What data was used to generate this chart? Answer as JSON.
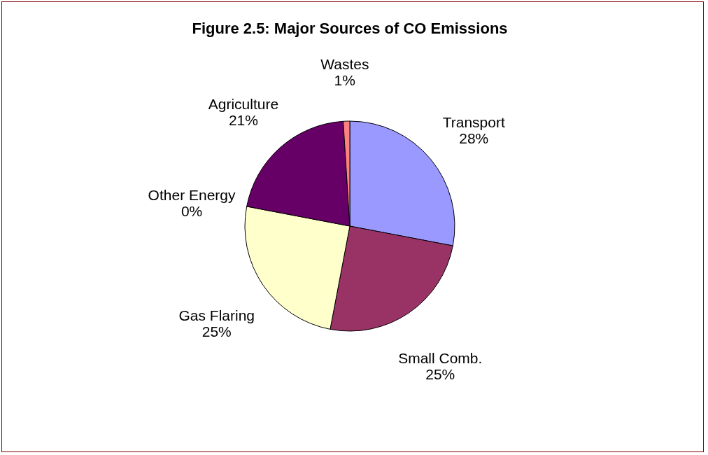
{
  "chart_data": {
    "type": "pie",
    "title": "Figure 2.5: Major Sources of CO Emissions",
    "categories": [
      "Transport",
      "Small Comb.",
      "Gas Flaring",
      "Other Energy",
      "Agriculture",
      "Wastes"
    ],
    "values": [
      28,
      25,
      25,
      0,
      21,
      1
    ],
    "colors": [
      "#9999ff",
      "#993366",
      "#ffffcc",
      "#669999",
      "#660066",
      "#ff8080"
    ],
    "value_labels": [
      "28%",
      "25%",
      "25%",
      "0%",
      "21%",
      "1%"
    ]
  }
}
